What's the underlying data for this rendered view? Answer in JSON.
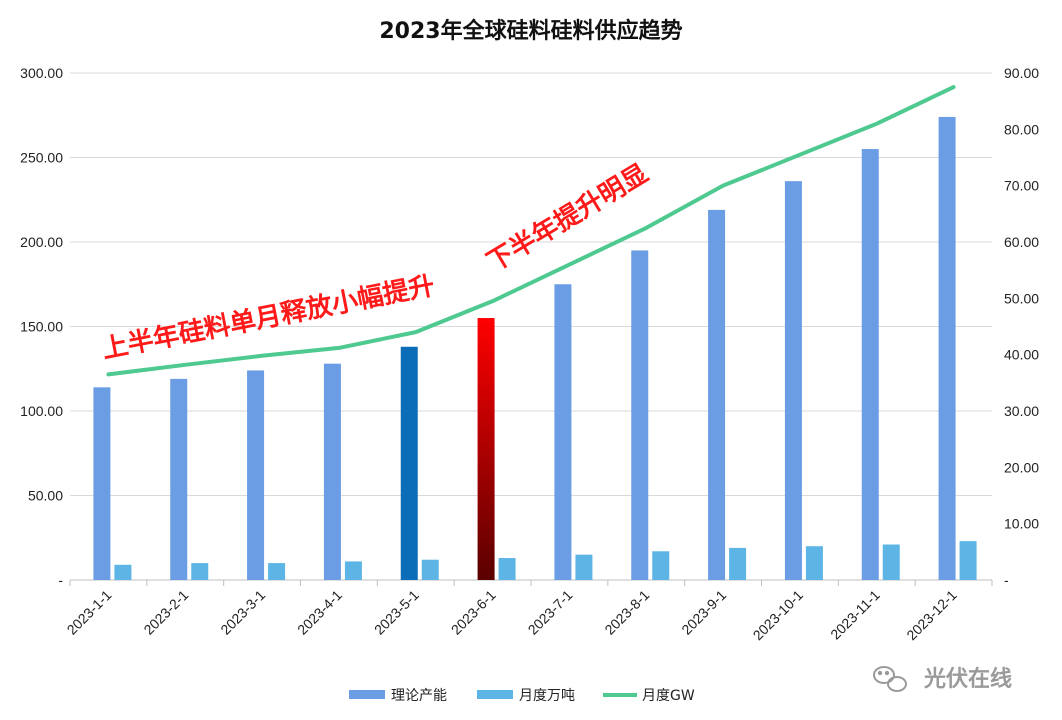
{
  "chart_data": {
    "type": "bar",
    "title": "2023年全球硅料硅料供应趋势",
    "categories": [
      "2023-1-1",
      "2023-2-1",
      "2023-3-1",
      "2023-4-1",
      "2023-5-1",
      "2023-6-1",
      "2023-7-1",
      "2023-8-1",
      "2023-9-1",
      "2023-10-1",
      "2023-11-1",
      "2023-12-1"
    ],
    "series": [
      {
        "name": "理论产能",
        "type": "bar",
        "axis": "left",
        "color": "#6a9de3",
        "values": [
          114,
          119,
          124,
          128,
          138,
          155,
          175,
          195,
          219,
          236,
          255,
          274
        ]
      },
      {
        "name": "月度万吨",
        "type": "bar",
        "axis": "left",
        "color": "#5db5e6",
        "values": [
          9,
          10,
          10,
          11,
          12,
          13,
          15,
          17,
          19,
          20,
          21,
          23
        ]
      },
      {
        "name": "月度GW",
        "type": "line",
        "axis": "right",
        "color": "#4ec98f",
        "values": [
          36.5,
          38.2,
          39.8,
          41.2,
          44.0,
          49.5,
          56.0,
          62.5,
          70.0,
          75.5,
          81.0,
          87.5
        ]
      }
    ],
    "highlights": [
      {
        "index": 4,
        "series": "理论产能",
        "color": "#0b6db8"
      },
      {
        "index": 5,
        "series": "理论产能",
        "color_top": "#ff0000",
        "color_bottom": "#5a0000"
      }
    ],
    "y_left": {
      "min": 0,
      "max": 300,
      "step": 50,
      "tick_labels": [
        "-",
        "50.00",
        "100.00",
        "150.00",
        "200.00",
        "250.00",
        "300.00"
      ]
    },
    "y_right": {
      "min": 0,
      "max": 90,
      "step": 10,
      "tick_labels": [
        "-",
        "10.00",
        "20.00",
        "30.00",
        "40.00",
        "50.00",
        "60.00",
        "70.00",
        "80.00",
        "90.00"
      ]
    },
    "grid": true,
    "legend_position": "bottom",
    "annotations": [
      {
        "text": "上半年硅料单月释放小幅提升"
      },
      {
        "text": "下半年提升明显"
      }
    ]
  },
  "watermark": {
    "text": "光伏在线",
    "icon": "wechat-icon"
  }
}
